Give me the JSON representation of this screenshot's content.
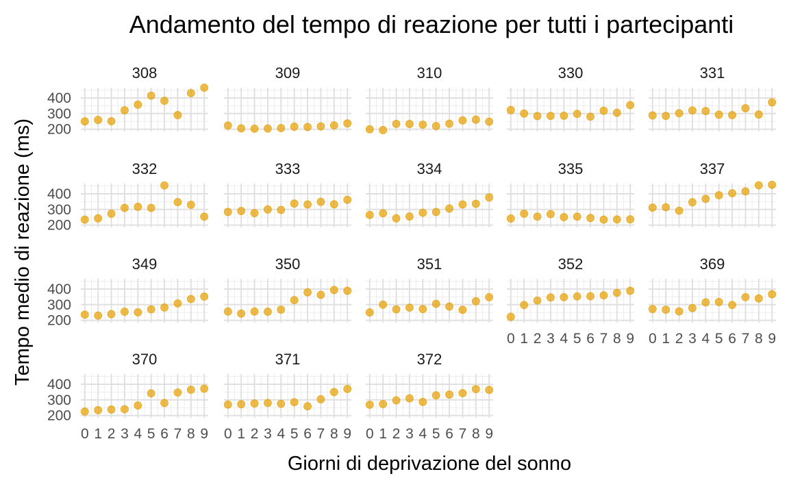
{
  "chart_data": {
    "type": "scatter",
    "title": "Andamento del tempo di reazione per tutti i partecipanti",
    "xlabel": "Giorni di deprivazione del sonno",
    "ylabel": "Tempo medio di reazione (ms)",
    "x": [
      0,
      1,
      2,
      3,
      4,
      5,
      6,
      7,
      8,
      9
    ],
    "x_ticks": [
      "0",
      "1",
      "2",
      "3",
      "4",
      "5",
      "6",
      "7",
      "8",
      "9"
    ],
    "y_ticks": [
      200,
      300,
      400
    ],
    "y_tick_labels": [
      "200",
      "300",
      "400"
    ],
    "xlim": [
      -0.3,
      9.3
    ],
    "ylim": [
      185,
      466
    ],
    "point_color": "#E69F00",
    "grid": true,
    "facets": [
      {
        "label": "308",
        "values": [
          250,
          259,
          251,
          321,
          357,
          415,
          382,
          290,
          431,
          466
        ]
      },
      {
        "label": "309",
        "values": [
          223,
          205,
          203,
          204,
          207,
          216,
          214,
          218,
          224,
          237
        ]
      },
      {
        "label": "310",
        "values": [
          199,
          194,
          234,
          233,
          229,
          220,
          235,
          256,
          261,
          248
        ]
      },
      {
        "label": "330",
        "values": [
          322,
          300,
          284,
          285,
          286,
          298,
          280,
          318,
          305,
          354
        ]
      },
      {
        "label": "331",
        "values": [
          288,
          285,
          302,
          320,
          316,
          293,
          290,
          334,
          294,
          372
        ]
      },
      {
        "label": "332",
        "values": [
          235,
          243,
          273,
          310,
          317,
          310,
          454,
          347,
          330,
          254
        ]
      },
      {
        "label": "333",
        "values": [
          284,
          290,
          277,
          300,
          297,
          338,
          332,
          349,
          333,
          362
        ]
      },
      {
        "label": "334",
        "values": [
          265,
          276,
          243,
          255,
          279,
          284,
          306,
          332,
          336,
          377
        ]
      },
      {
        "label": "335",
        "values": [
          242,
          273,
          254,
          270,
          251,
          254,
          245,
          235,
          236,
          237
        ]
      },
      {
        "label": "337",
        "values": [
          312,
          314,
          292,
          346,
          368,
          391,
          404,
          416,
          455,
          458
        ]
      },
      {
        "label": "349",
        "values": [
          236,
          230,
          239,
          255,
          251,
          270,
          282,
          308,
          336,
          352
        ]
      },
      {
        "label": "350",
        "values": [
          256,
          243,
          256,
          255,
          268,
          329,
          379,
          363,
          394,
          389
        ]
      },
      {
        "label": "351",
        "values": [
          250,
          300,
          270,
          281,
          272,
          305,
          288,
          267,
          322,
          348
        ]
      },
      {
        "label": "352",
        "values": [
          222,
          298,
          326,
          346,
          348,
          353,
          354,
          360,
          376,
          389
        ]
      },
      {
        "label": "369",
        "values": [
          272,
          268,
          257,
          278,
          315,
          317,
          298,
          348,
          340,
          367
        ]
      },
      {
        "label": "370",
        "values": [
          225,
          234,
          238,
          240,
          264,
          342,
          280,
          347,
          365,
          372
        ]
      },
      {
        "label": "371",
        "values": [
          270,
          272,
          277,
          280,
          275,
          285,
          259,
          304,
          350,
          370
        ]
      },
      {
        "label": "372",
        "values": [
          269,
          273,
          297,
          310,
          287,
          329,
          334,
          343,
          369,
          364
        ]
      }
    ]
  }
}
